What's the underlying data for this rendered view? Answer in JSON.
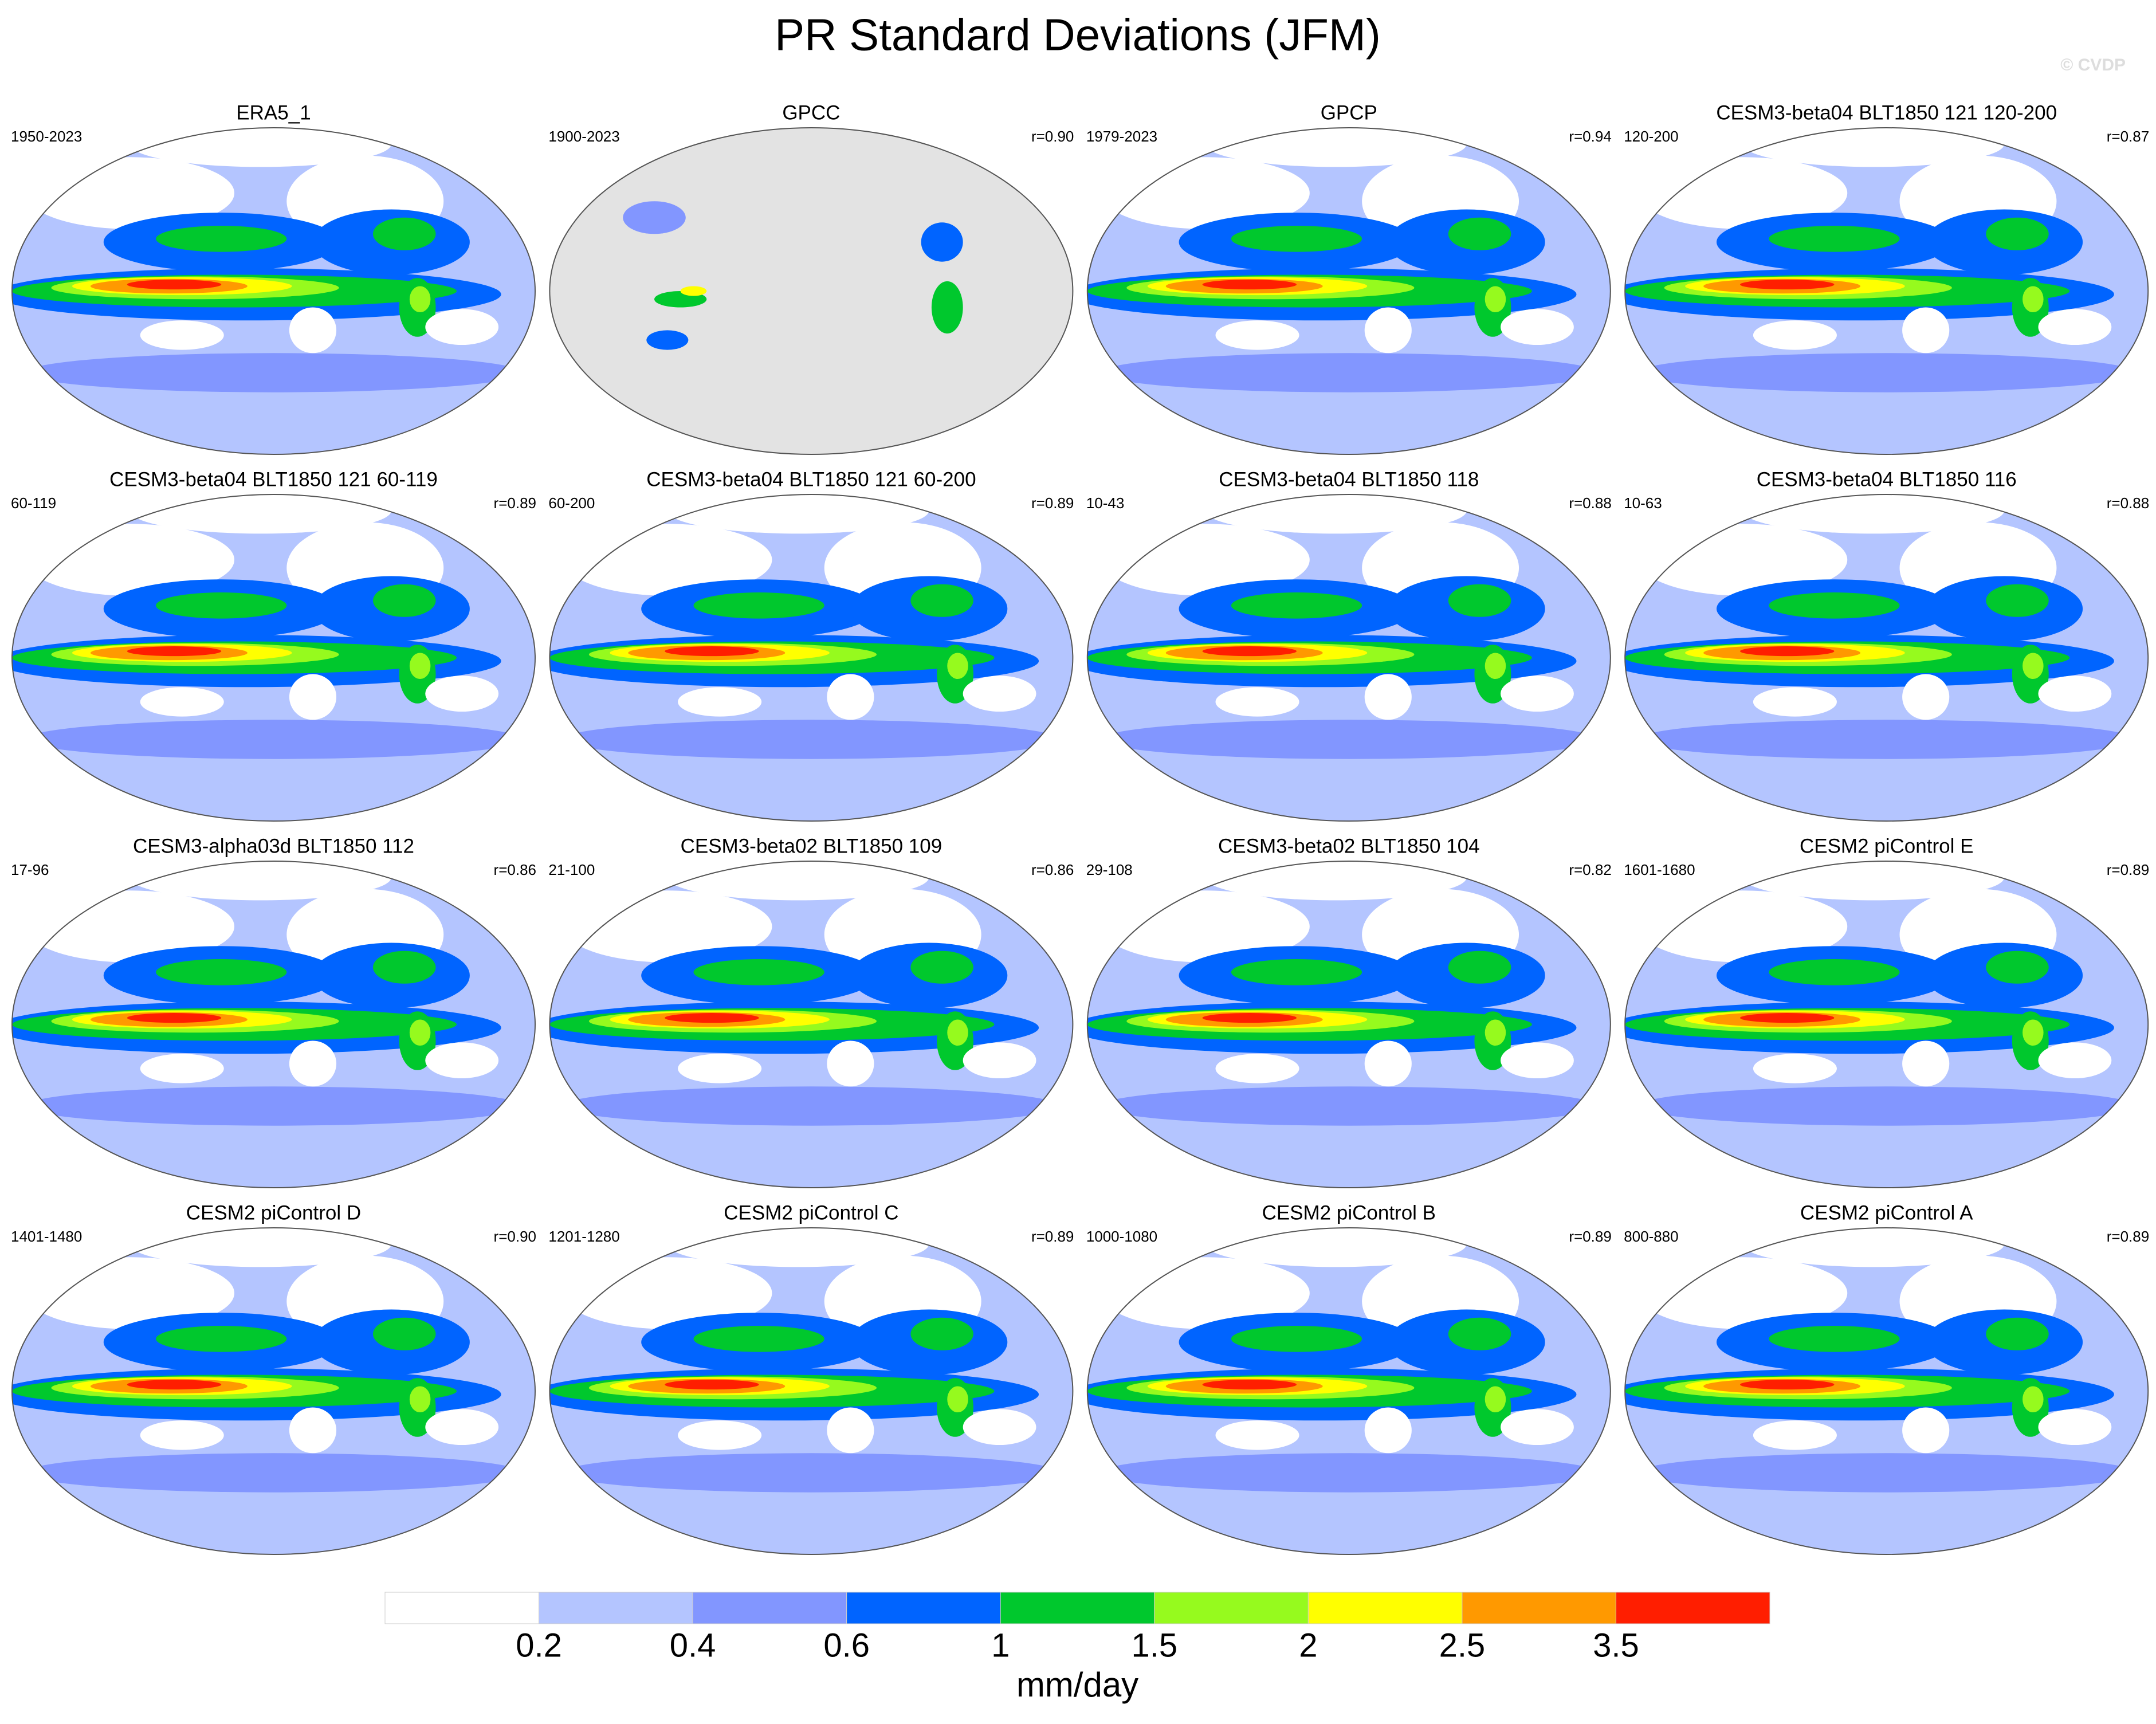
{
  "title": "PR Standard Deviations (JFM)",
  "watermark": "© CVDP",
  "panels": [
    {
      "title": "ERA5_1",
      "period": "1950-2023"
    },
    {
      "title": "GPCC",
      "period": "1900-2023",
      "r": "r=0.90"
    },
    {
      "title": "GPCP",
      "period": "1979-2023",
      "r": "r=0.94"
    },
    {
      "title": "CESM3-beta04 BLT1850 121 120-200",
      "period": "120-200",
      "r": "r=0.87"
    },
    {
      "title": "CESM3-beta04 BLT1850 121 60-119",
      "period": "60-119",
      "r": "r=0.89"
    },
    {
      "title": "CESM3-beta04 BLT1850 121 60-200",
      "period": "60-200",
      "r": "r=0.89"
    },
    {
      "title": "CESM3-beta04 BLT1850 118",
      "period": "10-43",
      "r": "r=0.88"
    },
    {
      "title": "CESM3-beta04 BLT1850 116",
      "period": "10-63",
      "r": "r=0.88"
    },
    {
      "title": "CESM3-alpha03d BLT1850 112",
      "period": "17-96",
      "r": "r=0.86"
    },
    {
      "title": "CESM3-beta02 BLT1850 109",
      "period": "21-100",
      "r": "r=0.86"
    },
    {
      "title": "CESM3-beta02 BLT1850 104",
      "period": "29-108",
      "r": "r=0.82"
    },
    {
      "title": "CESM2 piControl E",
      "period": "1601-1680",
      "r": "r=0.89"
    },
    {
      "title": "CESM2 piControl D",
      "period": "1401-1480",
      "r": "r=0.90"
    },
    {
      "title": "CESM2 piControl C",
      "period": "1201-1280",
      "r": "r=0.89"
    },
    {
      "title": "CESM2 piControl B",
      "period": "1000-1080",
      "r": "r=0.89"
    },
    {
      "title": "CESM2 piControl A",
      "period": "800-880",
      "r": "r=0.89"
    }
  ],
  "colorbar": {
    "colors": [
      "#ffffff",
      "#b4c5ff",
      "#8296ff",
      "#0064ff",
      "#00c82d",
      "#96fa1e",
      "#ffff00",
      "#ff9900",
      "#ff1e00"
    ],
    "ticks": [
      0.2,
      0.4,
      0.6,
      1,
      1.5,
      2,
      2.5,
      3.5
    ],
    "label": "mm/day"
  }
}
